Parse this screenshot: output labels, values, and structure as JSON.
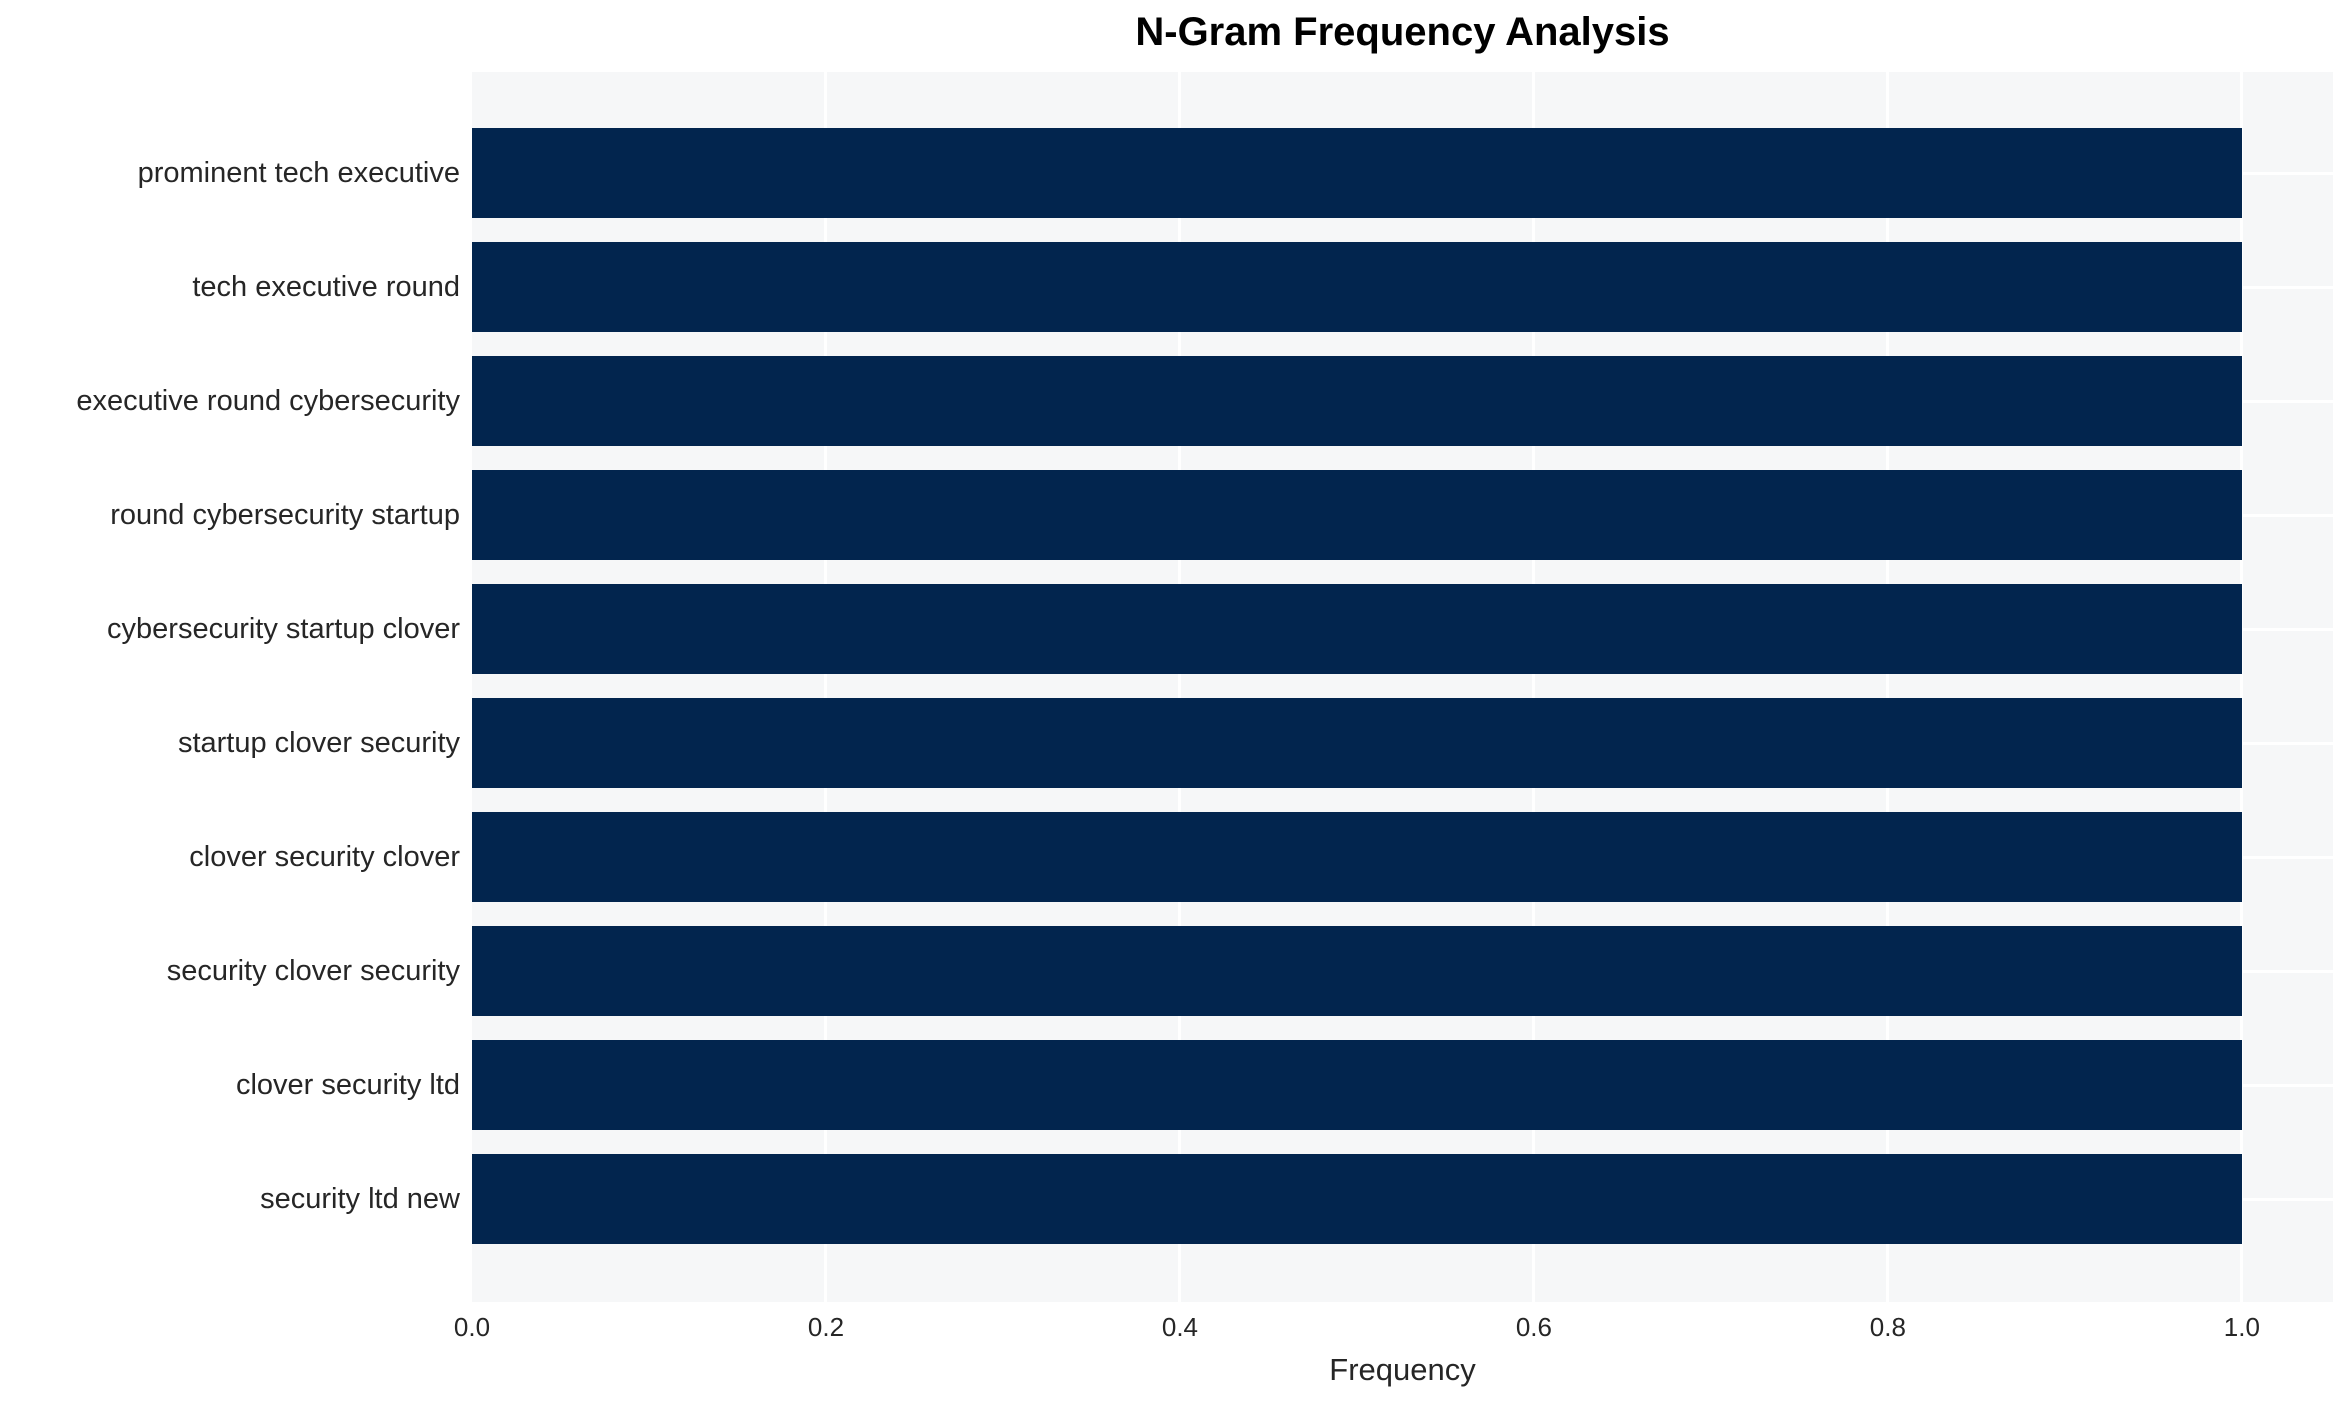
{
  "title": "N-Gram Frequency Analysis",
  "colors": {
    "bar": "#02254e",
    "plot_bg": "#f6f7f8",
    "grid": "#ffffff",
    "text": "#262626",
    "title_color": "#000000",
    "page_bg": "#ffffff"
  },
  "chart_data": {
    "type": "bar",
    "orientation": "horizontal",
    "title": "N-Gram Frequency Analysis",
    "categories": [
      "prominent tech executive",
      "tech executive round",
      "executive round cybersecurity",
      "round cybersecurity startup",
      "cybersecurity startup clover",
      "startup clover security",
      "clover security clover",
      "security clover security",
      "clover security ltd",
      "security ltd new"
    ],
    "values": [
      1.0,
      1.0,
      1.0,
      1.0,
      1.0,
      1.0,
      1.0,
      1.0,
      1.0,
      1.0
    ],
    "xlabel": "Frequency",
    "ylabel": "",
    "xticks": [
      0.0,
      0.2,
      0.4,
      0.6,
      0.8,
      1.0
    ],
    "xtick_labels": [
      "0.0",
      "0.2",
      "0.4",
      "0.6",
      "0.8",
      "1.0"
    ],
    "xlim": [
      0,
      1.0515
    ],
    "grid": true,
    "legend": false,
    "bar_color": "#02254e"
  }
}
